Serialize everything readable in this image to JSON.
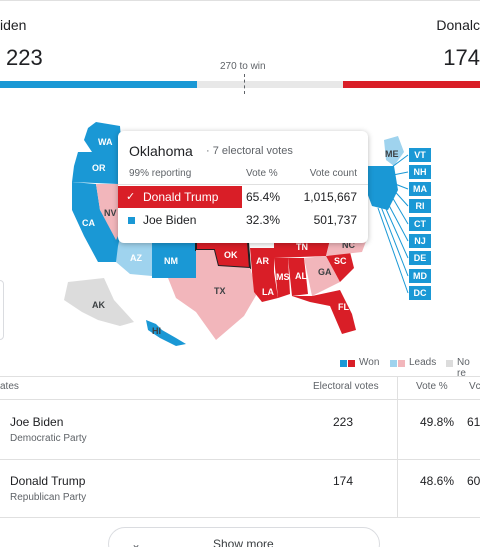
{
  "header": {
    "left_candidate": "iden",
    "left_votes": "223",
    "right_candidate": "Donalc",
    "right_votes": "174",
    "to_win": "270 to win"
  },
  "colors": {
    "biden_won": "#1a98d5",
    "biden_leads": "#9fd3ee",
    "trump_won": "#d91e27",
    "trump_leads": "#f2b6bb",
    "no_results": "#dcdcdc"
  },
  "map": {
    "labels": [
      "WA",
      "OR",
      "CA",
      "NV",
      "AZ",
      "NM",
      "OK",
      "TX",
      "AR",
      "MS",
      "AL",
      "LA",
      "TN",
      "GA",
      "SC",
      "NC",
      "FL",
      "AK",
      "HI",
      "ME"
    ],
    "side_labels": [
      "VT",
      "NH",
      "MA",
      "RI",
      "CT",
      "NJ",
      "DE",
      "MD",
      "DC"
    ]
  },
  "tooltip": {
    "state": "Oklahoma",
    "electoral": "· 7 electoral votes",
    "reporting": "99% reporting",
    "col_pct": "Vote %",
    "col_count": "Vote count",
    "rows": [
      {
        "check": "✓",
        "name": "Donald Trump",
        "pct": "65.4%",
        "count": "1,015,667"
      },
      {
        "name": "Joe Biden",
        "pct": "32.3%",
        "count": "501,737"
      }
    ]
  },
  "legend": {
    "won": "Won",
    "leads": "Leads",
    "no_results": "No re"
  },
  "table": {
    "headers": {
      "candidates": "ates",
      "electoral": "Electoral votes",
      "vote_pct": "Vote %",
      "vote_count": "Vc"
    },
    "rows": [
      {
        "name": "Joe Biden",
        "party": "Democratic Party",
        "electoral": "223",
        "pct": "49.8%",
        "count": "61"
      },
      {
        "name": "Donald Trump",
        "party": "Republican Party",
        "electoral": "174",
        "pct": "48.6%",
        "count": "60"
      }
    ]
  },
  "show_more": "Show more"
}
